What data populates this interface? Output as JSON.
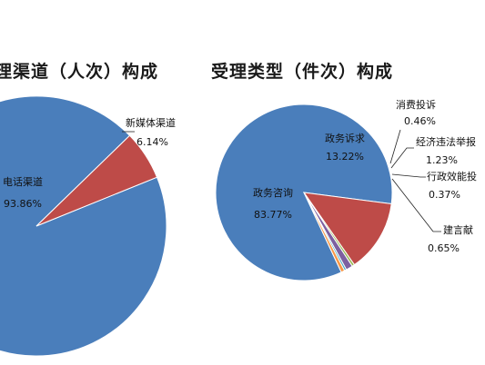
{
  "chart_data": [
    {
      "type": "pie",
      "title": "理渠道（人次）构成",
      "slices": [
        {
          "label": "电话渠道",
          "value": 93.86,
          "display": "93.86%",
          "color": "#4a7ebb"
        },
        {
          "label": "新媒体渠道",
          "value": 6.14,
          "display": "6.14%",
          "color": "#be4b48"
        }
      ]
    },
    {
      "type": "pie",
      "title": "受理类型（件次）构成",
      "slices": [
        {
          "label": "政务咨询",
          "value": 83.77,
          "display": "83.77%",
          "color": "#4a7ebb"
        },
        {
          "label": "政务诉求",
          "value": 13.22,
          "display": "13.22%",
          "color": "#be4b48"
        },
        {
          "label": "消费投诉",
          "value": 0.46,
          "display": "0.46%",
          "color": "#98b954"
        },
        {
          "label": "经济违法举报",
          "label_shown": "经济违法举报",
          "value": 1.23,
          "display": "1.23%",
          "color": "#7d60a0"
        },
        {
          "label": "行政效能投诉",
          "label_shown": "行政效能投",
          "value": 0.37,
          "display": "0.37%",
          "color": "#46aac5"
        },
        {
          "label": "建言献策",
          "label_shown": "建言献",
          "value": 0.65,
          "display": "0.65%",
          "color": "#f79646"
        }
      ]
    }
  ]
}
